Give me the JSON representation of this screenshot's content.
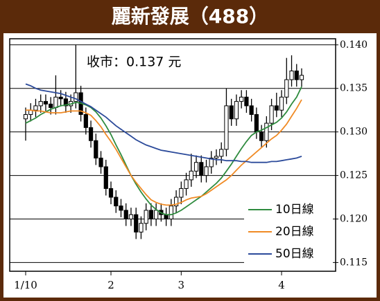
{
  "chart_data": {
    "type": "candlestick",
    "title": "麗新發展（488）",
    "annotation": "收市：0.137 元",
    "categories": [
      "1/10",
      null,
      null,
      null,
      null,
      null,
      null,
      null,
      null,
      null,
      null,
      null,
      null,
      null,
      null,
      null,
      null,
      "2",
      null,
      null,
      null,
      null,
      null,
      null,
      null,
      null,
      null,
      null,
      null,
      null,
      null,
      "3",
      null,
      null,
      null,
      null,
      null,
      null,
      null,
      null,
      null,
      null,
      null,
      null,
      null,
      null,
      null,
      null,
      null,
      null,
      null,
      "4",
      null,
      null,
      null,
      null
    ],
    "open": [
      0.1315,
      0.132,
      0.1325,
      0.133,
      0.1335,
      0.1332,
      0.1328,
      0.134,
      0.1338,
      0.133,
      0.1335,
      0.1345,
      0.132,
      0.1305,
      0.129,
      0.127,
      0.126,
      0.1235,
      0.1225,
      0.1215,
      0.121,
      0.12,
      0.1205,
      0.1185,
      0.1195,
      0.121,
      0.12,
      0.121,
      0.1205,
      0.12,
      0.1215,
      0.1225,
      0.1235,
      0.1245,
      0.1255,
      0.1265,
      0.125,
      0.126,
      0.127,
      0.1272,
      0.128,
      0.133,
      0.1315,
      0.1335,
      0.134,
      0.133,
      0.132,
      0.13,
      0.129,
      0.131,
      0.133,
      0.1325,
      0.134,
      0.136,
      0.137,
      0.136
    ],
    "high": [
      0.1328,
      0.1333,
      0.1338,
      0.1343,
      0.1343,
      0.134,
      0.1365,
      0.1348,
      0.1346,
      0.1343,
      0.14,
      0.1353,
      0.1328,
      0.1313,
      0.1298,
      0.1278,
      0.1268,
      0.1243,
      0.1233,
      0.1223,
      0.1218,
      0.1213,
      0.1213,
      0.1203,
      0.1218,
      0.1218,
      0.1218,
      0.1218,
      0.1213,
      0.1223,
      0.1233,
      0.1243,
      0.1253,
      0.1275,
      0.1273,
      0.1273,
      0.1268,
      0.1278,
      0.128,
      0.1288,
      0.135,
      0.1338,
      0.1343,
      0.1348,
      0.1348,
      0.1338,
      0.1328,
      0.1308,
      0.1318,
      0.1338,
      0.1345,
      0.1348,
      0.1385,
      0.1388,
      0.1378,
      0.1373
    ],
    "low": [
      0.129,
      0.1312,
      0.1317,
      0.1322,
      0.1324,
      0.132,
      0.132,
      0.133,
      0.1322,
      0.1322,
      0.1327,
      0.1312,
      0.1297,
      0.1282,
      0.1262,
      0.1252,
      0.1227,
      0.1217,
      0.1207,
      0.1202,
      0.1192,
      0.1192,
      0.1177,
      0.1177,
      0.1187,
      0.1192,
      0.1192,
      0.1197,
      0.1192,
      0.1192,
      0.1207,
      0.1217,
      0.1227,
      0.1237,
      0.1247,
      0.1242,
      0.1242,
      0.1252,
      0.1262,
      0.1264,
      0.1272,
      0.1307,
      0.1307,
      0.1327,
      0.1322,
      0.1312,
      0.1292,
      0.1282,
      0.1282,
      0.1302,
      0.1317,
      0.1317,
      0.1332,
      0.1352,
      0.1352,
      0.1352
    ],
    "close": [
      0.132,
      0.1325,
      0.133,
      0.1335,
      0.1332,
      0.1328,
      0.134,
      0.1338,
      0.133,
      0.1335,
      0.1345,
      0.132,
      0.1305,
      0.129,
      0.127,
      0.126,
      0.1235,
      0.1225,
      0.1215,
      0.121,
      0.12,
      0.1205,
      0.1185,
      0.1195,
      0.121,
      0.12,
      0.121,
      0.1205,
      0.12,
      0.1215,
      0.1225,
      0.1235,
      0.1245,
      0.1255,
      0.1265,
      0.125,
      0.126,
      0.127,
      0.1272,
      0.128,
      0.133,
      0.1315,
      0.1335,
      0.134,
      0.133,
      0.132,
      0.13,
      0.129,
      0.131,
      0.133,
      0.1325,
      0.134,
      0.136,
      0.137,
      0.136,
      0.1365
    ],
    "up_color": "#ffffff",
    "down_color": "#000000",
    "series": [
      {
        "name": "10日線",
        "color": "#2e8b3e",
        "values": [
          0.131,
          0.1313,
          0.1316,
          0.132,
          0.1323,
          0.1326,
          0.1328,
          0.133,
          0.1331,
          0.1332,
          0.1334,
          0.1333,
          0.1331,
          0.1328,
          0.1323,
          0.1316,
          0.1307,
          0.1297,
          0.1285,
          0.1274,
          0.1262,
          0.125,
          0.124,
          0.1231,
          0.1223,
          0.1216,
          0.1211,
          0.1207,
          0.1205,
          0.1205,
          0.1207,
          0.121,
          0.1214,
          0.1218,
          0.1222,
          0.1226,
          0.1231,
          0.1236,
          0.1241,
          0.1247,
          0.1255,
          0.1263,
          0.1272,
          0.1281,
          0.1289,
          0.1296,
          0.13,
          0.1302,
          0.1305,
          0.1308,
          0.1311,
          0.1316,
          0.1323,
          0.1332,
          0.134,
          0.1352
        ]
      },
      {
        "name": "20日線",
        "color": "#f08a24",
        "values": [
          0.1325,
          0.1325,
          0.1324,
          0.1324,
          0.1323,
          0.1322,
          0.1322,
          0.1322,
          0.1323,
          0.1324,
          0.1324,
          0.1324,
          0.1322,
          0.1319,
          0.1313,
          0.1306,
          0.1297,
          0.1289,
          0.128,
          0.127,
          0.126,
          0.125,
          0.1242,
          0.1235,
          0.1228,
          0.1222,
          0.1219,
          0.1217,
          0.1216,
          0.1216,
          0.1217,
          0.1219,
          0.1222,
          0.1224,
          0.1225,
          0.1226,
          0.1229,
          0.1233,
          0.1237,
          0.1241,
          0.1245,
          0.125,
          0.1256,
          0.1262,
          0.1267,
          0.1272,
          0.1277,
          0.1282,
          0.1287,
          0.1292,
          0.1296,
          0.1302,
          0.1309,
          0.1318,
          0.1327,
          0.1337
        ]
      },
      {
        "name": "50日線",
        "color": "#2b4a9a",
        "values": [
          0.1355,
          0.1353,
          0.135,
          0.1348,
          0.1347,
          0.1346,
          0.1345,
          0.1344,
          0.1342,
          0.134,
          0.1338,
          0.1335,
          0.1332,
          0.1329,
          0.1325,
          0.1321,
          0.1317,
          0.1312,
          0.1307,
          0.1303,
          0.1299,
          0.1295,
          0.1291,
          0.1288,
          0.1285,
          0.1283,
          0.1281,
          0.1279,
          0.1278,
          0.1277,
          0.1276,
          0.1275,
          0.1274,
          0.1273,
          0.1272,
          0.1271,
          0.127,
          0.1269,
          0.1268,
          0.1268,
          0.1267,
          0.1267,
          0.1267,
          0.1266,
          0.1266,
          0.1265,
          0.1265,
          0.1265,
          0.1265,
          0.1266,
          0.1266,
          0.1267,
          0.1268,
          0.1269,
          0.127,
          0.1272
        ]
      }
    ],
    "ylim": [
      0.114,
      0.1407
    ],
    "yticks": [
      {
        "value": 0.14,
        "label": "0.140"
      },
      0.135,
      {
        "value": 0.13,
        "label": "0.130"
      },
      0.125,
      {
        "value": 0.12,
        "label": "0.120"
      },
      0.115
    ],
    "grid": true,
    "legend": "lower right"
  }
}
